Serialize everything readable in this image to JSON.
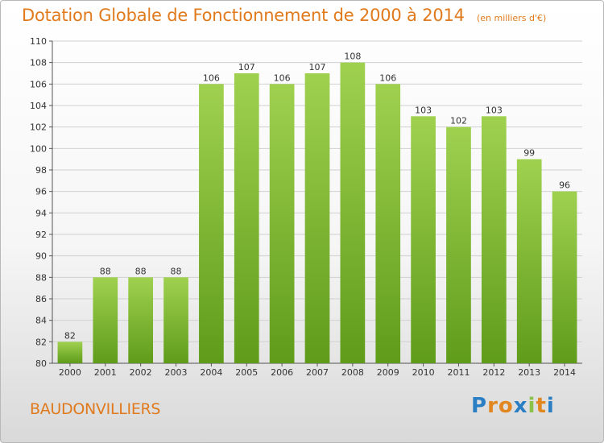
{
  "title": "Dotation Globale de Fonctionnement de 2000 à 2014",
  "unit_note": "(en milliers d'€)",
  "place": "BAUDONVILLIERS",
  "logo": {
    "text": "Proxiti",
    "letters": [
      "P",
      "r",
      "o",
      "x",
      "i",
      "t",
      "i"
    ],
    "colors": [
      "#2a7fc4",
      "#e2861f",
      "#e2861f",
      "#2a7fc4",
      "#8bc34a",
      "#e2861f",
      "#2a7fc4"
    ]
  },
  "colors": {
    "accent": "#e07a1c",
    "bar_light": "#9fd14f",
    "bar_dark": "#5f9c1a",
    "grid": "#d0d0d0"
  },
  "chart_data": {
    "type": "bar",
    "title": "Dotation Globale de Fonctionnement de 2000 à 2014",
    "subtitle": "(en milliers d'€)",
    "categories": [
      "2000",
      "2001",
      "2002",
      "2003",
      "2004",
      "2005",
      "2006",
      "2007",
      "2008",
      "2009",
      "2010",
      "2011",
      "2012",
      "2013",
      "2014"
    ],
    "values": [
      82,
      88,
      88,
      88,
      106,
      107,
      106,
      107,
      108,
      106,
      103,
      102,
      103,
      99,
      96
    ],
    "ylim": [
      80,
      110
    ],
    "yticks": [
      80,
      82,
      84,
      86,
      88,
      90,
      92,
      94,
      96,
      98,
      100,
      102,
      104,
      106,
      108,
      110
    ],
    "grid": true,
    "xlabel": "",
    "ylabel": ""
  }
}
